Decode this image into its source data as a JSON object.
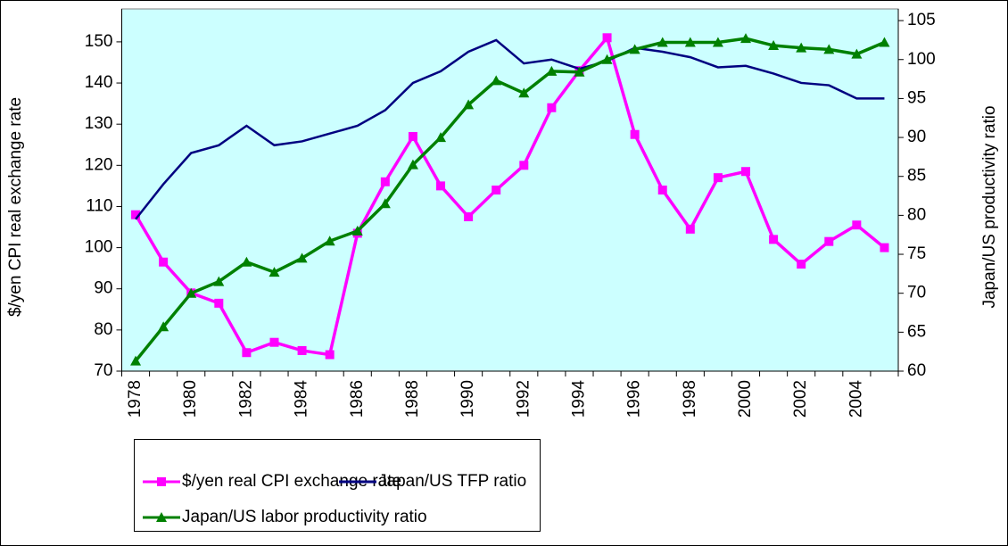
{
  "chart_data": {
    "type": "line",
    "categories": [
      "1978",
      null,
      "1980",
      null,
      "1982",
      null,
      "1984",
      null,
      "1986",
      null,
      "1988",
      null,
      "1990",
      null,
      "1992",
      null,
      "1994",
      null,
      "1996",
      null,
      "1998",
      null,
      "2000",
      null,
      "2002",
      null,
      "2004",
      null
    ],
    "y_label": "$/yen CPI real exchange rate",
    "y2_label": "Japan/US productivity ratio",
    "ylim": [
      70,
      158
    ],
    "yticks": [
      70,
      80,
      90,
      100,
      110,
      120,
      130,
      140,
      150
    ],
    "y2lim": [
      60,
      106.5
    ],
    "y2ticks": [
      60,
      65,
      70,
      75,
      80,
      85,
      90,
      95,
      100,
      105
    ],
    "background": "#ccffff",
    "series": [
      {
        "name": "$/yen real CPI exchange rate",
        "color": "#ff00ff",
        "marker": "square",
        "values": [
          108,
          96.5,
          89,
          86.5,
          74.5,
          77,
          75,
          74,
          103.5,
          116,
          127,
          115,
          107.5,
          114,
          120,
          134,
          143,
          151,
          127.5,
          114,
          104.5,
          117,
          118.5,
          102,
          96,
          101.5,
          105.5,
          100
        ]
      },
      {
        "name": "Japan/US TFP ratio",
        "color": "#000080",
        "marker": "none",
        "axis": "y2",
        "values": [
          79.5,
          84,
          88,
          89,
          91.5,
          89,
          89.5,
          90.5,
          91.5,
          93.5,
          97,
          98.5,
          101,
          102.5,
          99.5,
          100,
          98.8,
          99.8,
          101.5,
          101,
          100.3,
          99,
          99.2,
          98.2,
          97,
          96.7,
          95,
          95
        ]
      },
      {
        "name": "Japan/US labor productivity ratio",
        "color": "#008000",
        "marker": "triangle",
        "axis": "y2",
        "values": [
          61.3,
          65.7,
          70,
          71.5,
          74,
          72.7,
          74.5,
          76.7,
          78,
          81.5,
          86.5,
          90,
          94.2,
          97.3,
          95.7,
          98.5,
          98.4,
          100,
          101.3,
          102.2,
          102.2,
          102.2,
          102.7,
          101.8,
          101.5,
          101.3,
          100.7,
          102.2
        ]
      }
    ]
  }
}
